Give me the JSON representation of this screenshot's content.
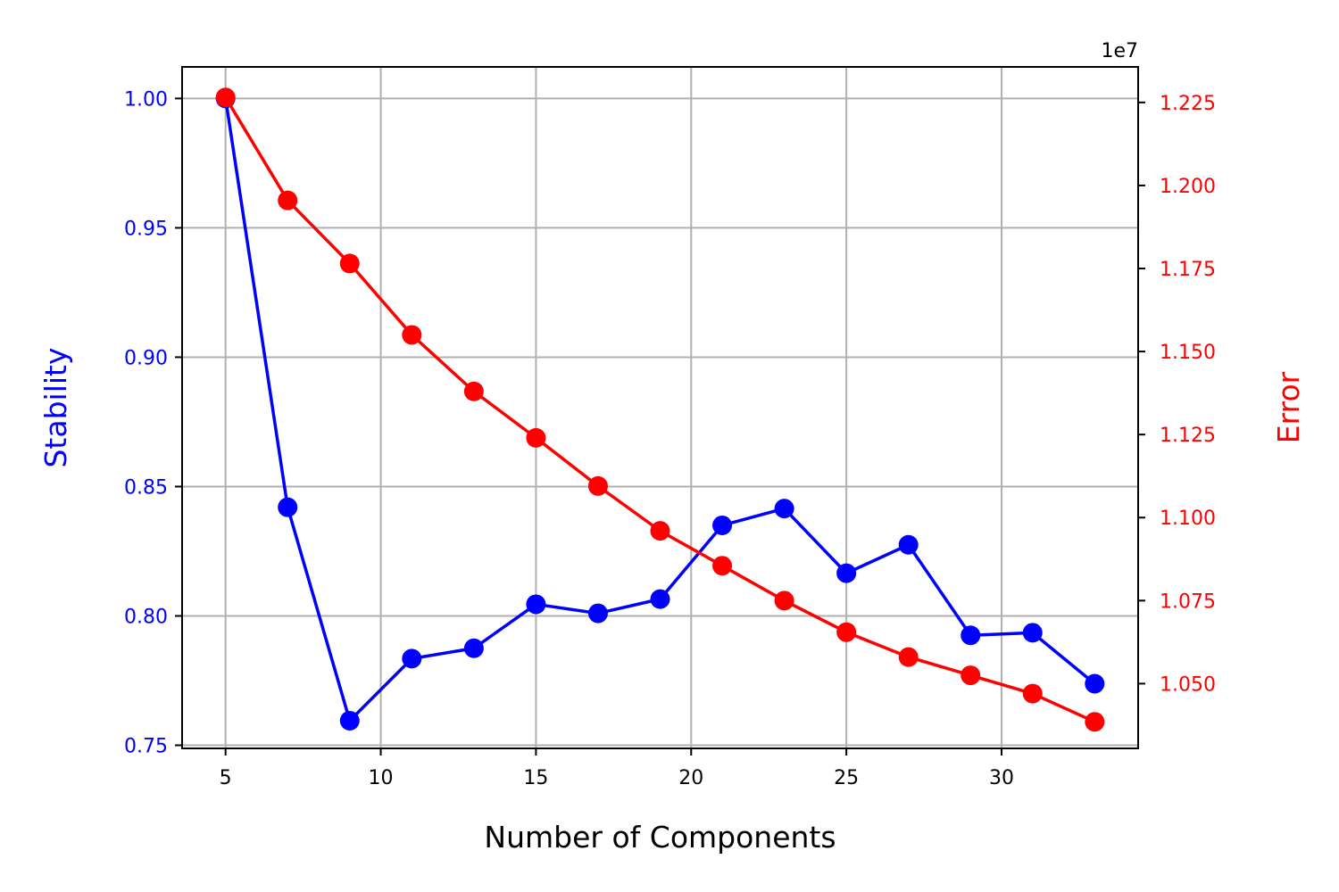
{
  "chart_data": {
    "type": "line",
    "xlabel": "Number of Components",
    "ylabel_left": "Stability",
    "ylabel_right": "Error",
    "right_axis_offset_label": "1e7",
    "grid": true,
    "x": [
      5,
      7,
      9,
      11,
      13,
      15,
      17,
      19,
      21,
      23,
      25,
      27,
      29,
      31,
      33
    ],
    "xlim": [
      3.6,
      34.4
    ],
    "x_ticks": [
      5,
      10,
      15,
      20,
      25,
      30
    ],
    "x_tick_labels": [
      "5",
      "10",
      "15",
      "20",
      "25",
      "30"
    ],
    "ylim_left": [
      0.7488,
      1.0122
    ],
    "y_ticks_left": [
      0.75,
      0.8,
      0.85,
      0.9,
      0.95,
      1.0
    ],
    "y_tick_labels_left": [
      "0.75",
      "0.80",
      "0.85",
      "0.90",
      "0.95",
      "1.00"
    ],
    "ylim_right": [
      1.0305,
      1.2357
    ],
    "y_ticks_right": [
      1.05,
      1.075,
      1.1,
      1.125,
      1.15,
      1.175,
      1.2,
      1.225
    ],
    "y_tick_labels_right": [
      "1.050",
      "1.075",
      "1.100",
      "1.125",
      "1.150",
      "1.175",
      "1.200",
      "1.225"
    ],
    "series": [
      {
        "axis": "left",
        "color": "#0000ff",
        "values": [
          1.0,
          0.842,
          0.7595,
          0.7835,
          0.7875,
          0.8045,
          0.801,
          0.8065,
          0.835,
          0.8415,
          0.8165,
          0.8275,
          0.7925,
          0.7935,
          0.7738
        ]
      },
      {
        "axis": "right",
        "color": "#ff0000",
        "values": [
          1.2265,
          1.1955,
          1.1765,
          1.155,
          1.138,
          1.124,
          1.1095,
          1.096,
          1.0855,
          1.075,
          1.0655,
          1.058,
          1.0525,
          1.047,
          1.0385
        ]
      }
    ]
  }
}
